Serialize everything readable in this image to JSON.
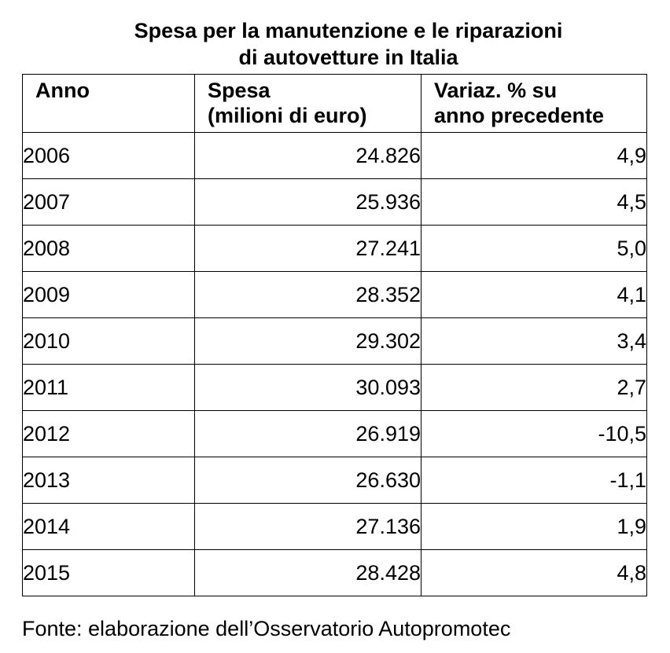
{
  "title": {
    "line1": "Spesa per la manutenzione e le riparazioni",
    "line2": "di autovetture in Italia"
  },
  "table": {
    "headers": [
      {
        "line1": "Anno",
        "line2": ""
      },
      {
        "line1": "Spesa",
        "line2": "(milioni di euro)"
      },
      {
        "line1": "Variaz. % su",
        "line2": "anno precedente"
      }
    ],
    "rows": [
      {
        "year": "2006",
        "spesa": "24.826",
        "variazione": "4,9"
      },
      {
        "year": "2007",
        "spesa": "25.936",
        "variazione": "4,5"
      },
      {
        "year": "2008",
        "spesa": "27.241",
        "variazione": "5,0"
      },
      {
        "year": "2009",
        "spesa": "28.352",
        "variazione": "4,1"
      },
      {
        "year": "2010",
        "spesa": "29.302",
        "variazione": "3,4"
      },
      {
        "year": "2011",
        "spesa": "30.093",
        "variazione": "2,7"
      },
      {
        "year": "2012",
        "spesa": "26.919",
        "variazione": "-10,5"
      },
      {
        "year": "2013",
        "spesa": "26.630",
        "variazione": "-1,1"
      },
      {
        "year": "2014",
        "spesa": "27.136",
        "variazione": "1,9"
      },
      {
        "year": "2015",
        "spesa": "28.428",
        "variazione": "4,8"
      }
    ]
  },
  "source": "Fonte: elaborazione dell’Osservatorio Autopromotec"
}
